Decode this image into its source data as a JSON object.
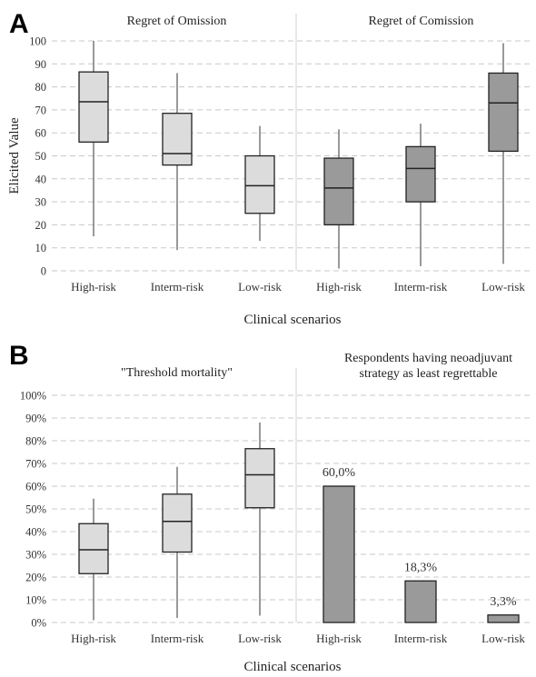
{
  "chart_data": [
    {
      "panel": "A",
      "type": "box",
      "ylabel": "Elicited Value",
      "xlabel": "Clinical scenarios",
      "ylim": [
        0,
        100
      ],
      "yticks": [
        0,
        10,
        20,
        30,
        40,
        50,
        60,
        70,
        80,
        90,
        100
      ],
      "grid": true,
      "colors": {
        "light": "#dcdcdc",
        "dark": "#9a9a9a"
      },
      "groups": [
        {
          "title": "Regret of Omission",
          "shade": "light",
          "boxes": [
            {
              "category": "High-risk",
              "min": 15,
              "q1": 56,
              "median": 73.5,
              "q3": 86.5,
              "max": 100
            },
            {
              "category": "Interm-risk",
              "min": 9,
              "q1": 46,
              "median": 51,
              "q3": 68.5,
              "max": 86
            },
            {
              "category": "Low-risk",
              "min": 13,
              "q1": 25,
              "median": 37,
              "q3": 50,
              "max": 63
            }
          ]
        },
        {
          "title": "Regret of Comission",
          "shade": "dark",
          "boxes": [
            {
              "category": "High-risk",
              "min": 1,
              "q1": 20,
              "median": 36,
              "q3": 49,
              "max": 61.5
            },
            {
              "category": "Interm-risk",
              "min": 2,
              "q1": 30,
              "median": 44.5,
              "q3": 54,
              "max": 64
            },
            {
              "category": "Low-risk",
              "min": 3,
              "q1": 52,
              "median": 73,
              "q3": 86,
              "max": 99
            }
          ]
        }
      ]
    },
    {
      "panel": "B",
      "type": "box+bar",
      "xlabel": "Clinical scenarios",
      "ylim": [
        0,
        100
      ],
      "yticks": [
        0,
        10,
        20,
        30,
        40,
        50,
        60,
        70,
        80,
        90,
        100
      ],
      "ytick_suffix": "%",
      "grid": true,
      "colors": {
        "light": "#dcdcdc",
        "dark": "#9a9a9a"
      },
      "box_group": {
        "title": "\"Threshold mortality\"",
        "shade": "light",
        "boxes": [
          {
            "category": "High-risk",
            "min": 1,
            "q1": 21.5,
            "median": 32,
            "q3": 43.5,
            "max": 54.5
          },
          {
            "category": "Interm-risk",
            "min": 2,
            "q1": 31,
            "median": 44.5,
            "q3": 56.5,
            "max": 68.5
          },
          {
            "category": "Low-risk",
            "min": 3,
            "q1": 50.5,
            "median": 65,
            "q3": 76.5,
            "max": 88
          }
        ]
      },
      "bar_group": {
        "title_lines": [
          "Respondents having neoadjuvant",
          "strategy as least regrettable"
        ],
        "shade": "dark",
        "bars": [
          {
            "category": "High-risk",
            "value": 60.0,
            "label": "60,0%"
          },
          {
            "category": "Interm-risk",
            "value": 18.3,
            "label": "18,3%"
          },
          {
            "category": "Low-risk",
            "value": 3.3,
            "label": "3,3%"
          }
        ]
      }
    }
  ]
}
